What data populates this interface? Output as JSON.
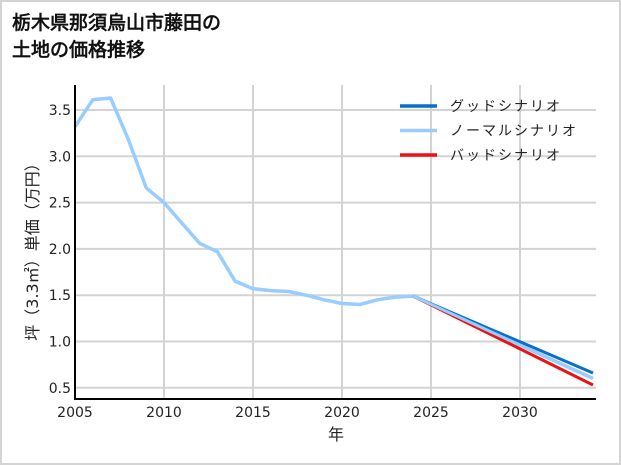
{
  "title_line1": "栃木県那須烏山市藤田の",
  "title_line2": "土地の価格推移",
  "chart_data": {
    "type": "line",
    "title": "栃木県那須烏山市藤田の土地の価格推移",
    "xlabel": "年",
    "ylabel": "坪（3.3㎡）単価（万円）",
    "xlim": [
      2005,
      2034.1
    ],
    "ylim": [
      0.39,
      3.78
    ],
    "xticks": [
      2005,
      2010,
      2015,
      2020,
      2025,
      2030
    ],
    "yticks": [
      0.5,
      1.0,
      1.5,
      2.0,
      2.5,
      3.0,
      3.5
    ],
    "xtick_labels": [
      "2005",
      "2010",
      "2015",
      "2020",
      "2025",
      "2030"
    ],
    "ytick_labels": [
      "0.5",
      "1.0",
      "1.5",
      "2.0",
      "2.5",
      "3.0",
      "3.5"
    ],
    "grid": true,
    "legend_position": "upper right",
    "series": [
      {
        "name": "グッドシナリオ",
        "color": "#0a6fc9",
        "x": [
          2024,
          2034.1
        ],
        "y": [
          1.49,
          0.66
        ]
      },
      {
        "name": "ノーマルシナリオ",
        "color": "#99ccff",
        "x": [
          2005,
          2006,
          2007,
          2008,
          2009,
          2010,
          2011,
          2012,
          2013,
          2014,
          2015,
          2016,
          2017,
          2018,
          2019,
          2020,
          2021,
          2022,
          2023,
          2024,
          2034.1
        ],
        "y": [
          3.32,
          3.61,
          3.63,
          3.18,
          2.66,
          2.5,
          2.28,
          2.06,
          1.97,
          1.65,
          1.57,
          1.55,
          1.54,
          1.5,
          1.45,
          1.41,
          1.4,
          1.45,
          1.48,
          1.49,
          0.6
        ]
      },
      {
        "name": "バッドシナリオ",
        "color": "#ee1111",
        "x": [
          2024,
          2034.1
        ],
        "y": [
          1.49,
          0.53
        ]
      }
    ]
  },
  "legend": [
    {
      "label": "グッドシナリオ",
      "color": "#0a6fc9"
    },
    {
      "label": "ノーマルシナリオ",
      "color": "#99ccff"
    },
    {
      "label": "バッドシナリオ",
      "color": "#ee1111"
    }
  ]
}
